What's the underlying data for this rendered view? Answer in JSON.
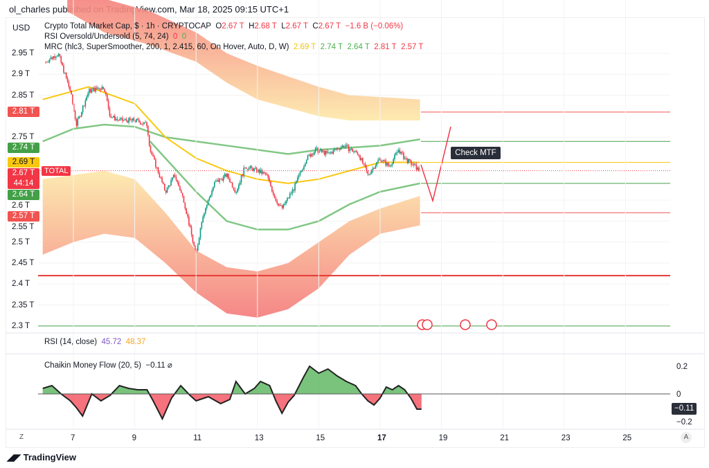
{
  "header": {
    "published": "ol_charles published on TradingView.com, Mar 18, 2025 09:15 UTC+1",
    "currency": "USD"
  },
  "legend": {
    "symbol": "Crypto Total Market Cap, $ · 1h · CRYPTOCAP",
    "ohlc": {
      "o_label": "O",
      "o": "2.67 T",
      "h_label": "H",
      "h": "2.68 T",
      "l_label": "L",
      "l": "2.67 T",
      "c_label": "C",
      "c": "2.67 T",
      "change": "−1.6 B (−0.06%)"
    },
    "rsi_os": {
      "name": "RSI Oversold/Undersold (5, 74, 24)",
      "v1": "0",
      "v2": "0"
    },
    "mrc": {
      "name": "MRC (hlc3, SuperSmoother, 200, 1, 2.415, 60, On Hover, Auto, D, W)",
      "values": [
        "2.69 T",
        "2.74 T",
        "2.64 T",
        "2.81 T",
        "2.57 T"
      ]
    },
    "rsi": {
      "name": "RSI (14, close)",
      "v1": "45.72",
      "v2": "48.37"
    },
    "cmf": {
      "name": "Chaikin Money Flow (20, 5)",
      "value": "−0.11",
      "icon": "eye-off-icon"
    }
  },
  "price_labels": [
    {
      "text": "2.81 T",
      "value": 2.81,
      "color": "#f05350"
    },
    {
      "text": "2.74 T",
      "value": 2.74,
      "color": "#43a047"
    },
    {
      "text": "2.69 T",
      "value": 2.69,
      "color": "#f9c80e"
    },
    {
      "text": "2.67 T",
      "sub": "44:14",
      "value": 2.67,
      "color": "#f23645"
    },
    {
      "text": "2.64 T",
      "value": 2.64,
      "color": "#43a047"
    },
    {
      "text": "2.57 T",
      "value": 2.57,
      "color": "#f05350"
    }
  ],
  "total_tag": "TOTAL",
  "annotation": "Check MTF",
  "cmf_axis": {
    "ticks": [
      "0.2",
      "0",
      "−0.2"
    ],
    "current": "−0.11"
  },
  "scale_buttons": {
    "left": "Z",
    "right": "A"
  },
  "footer": {
    "logo": "TradingView"
  },
  "colors": {
    "up": "#089981",
    "down": "#f23645",
    "mean": "#f9c80e",
    "inner": "#81c784",
    "cmf_pos": "#4caf50",
    "cmf_neg": "#f23645"
  },
  "chart_data": {
    "type": "candlestick",
    "price_axis": {
      "ticks": [
        "2.95 T",
        "2.9 T",
        "2.85 T",
        "2.75 T",
        "2.6 T",
        "2.55 T",
        "2.5 T",
        "2.45 T",
        "2.4 T",
        "2.35 T",
        "2.3 T"
      ],
      "range": [
        2.29,
        3.0
      ],
      "side": "left"
    },
    "time_axis": {
      "ticks": [
        "7",
        "9",
        "11",
        "13",
        "15",
        "17",
        "19",
        "21",
        "23",
        "25"
      ],
      "range": [
        6,
        27
      ]
    },
    "close": [
      [
        6.1,
        2.93
      ],
      [
        6.5,
        2.95
      ],
      [
        6.9,
        2.86
      ],
      [
        7.1,
        2.78
      ],
      [
        7.5,
        2.86
      ],
      [
        8,
        2.87
      ],
      [
        8.2,
        2.8
      ],
      [
        8.5,
        2.79
      ],
      [
        9,
        2.79
      ],
      [
        9.4,
        2.78
      ],
      [
        9.5,
        2.72
      ],
      [
        9.8,
        2.66
      ],
      [
        10,
        2.62
      ],
      [
        10.3,
        2.66
      ],
      [
        10.6,
        2.6
      ],
      [
        10.9,
        2.5
      ],
      [
        11,
        2.47
      ],
      [
        11.2,
        2.56
      ],
      [
        11.6,
        2.64
      ],
      [
        12,
        2.66
      ],
      [
        12.3,
        2.62
      ],
      [
        12.6,
        2.68
      ],
      [
        13,
        2.67
      ],
      [
        13.3,
        2.66
      ],
      [
        13.6,
        2.6
      ],
      [
        13.8,
        2.58
      ],
      [
        14.2,
        2.63
      ],
      [
        14.6,
        2.7
      ],
      [
        14.9,
        2.72
      ],
      [
        15.3,
        2.71
      ],
      [
        15.8,
        2.73
      ],
      [
        16.3,
        2.71
      ],
      [
        16.6,
        2.66
      ],
      [
        17,
        2.7
      ],
      [
        17.3,
        2.68
      ],
      [
        17.6,
        2.72
      ],
      [
        17.8,
        2.7
      ],
      [
        18.3,
        2.67
      ]
    ],
    "mrc_mean": [
      [
        6,
        2.84
      ],
      [
        7.5,
        2.87
      ],
      [
        9,
        2.83
      ],
      [
        10,
        2.75
      ],
      [
        11,
        2.7
      ],
      [
        12,
        2.67
      ],
      [
        13,
        2.65
      ],
      [
        14,
        2.64
      ],
      [
        15,
        2.65
      ],
      [
        16,
        2.67
      ],
      [
        17,
        2.69
      ],
      [
        18.3,
        2.69
      ]
    ],
    "mrc_upper_inner": [
      [
        6,
        2.74
      ],
      [
        7,
        2.77
      ],
      [
        8,
        2.78
      ],
      [
        9,
        2.775
      ],
      [
        10,
        2.75
      ],
      [
        11,
        2.74
      ],
      [
        12,
        2.73
      ],
      [
        13,
        2.72
      ],
      [
        14,
        2.71
      ],
      [
        15,
        2.72
      ],
      [
        17,
        2.73
      ],
      [
        18.3,
        2.745
      ]
    ],
    "mrc_lower_inner": [
      [
        9.5,
        2.74
      ],
      [
        10,
        2.7
      ],
      [
        11,
        2.62
      ],
      [
        12,
        2.55
      ],
      [
        13,
        2.53
      ],
      [
        14,
        2.53
      ],
      [
        15,
        2.55
      ],
      [
        16,
        2.59
      ],
      [
        17,
        2.62
      ],
      [
        18.3,
        2.64
      ]
    ],
    "mrc_upper_band": [
      [
        6.8,
        3.05,
        3.1
      ],
      [
        8,
        3.0,
        3.08
      ],
      [
        9.5,
        2.97,
        3.05
      ],
      [
        11,
        2.93,
        3.0
      ],
      [
        12,
        2.88,
        2.95
      ],
      [
        13,
        2.84,
        2.92
      ],
      [
        15,
        2.8,
        2.87
      ],
      [
        16,
        2.79,
        2.85
      ],
      [
        18.3,
        2.79,
        2.84
      ]
    ],
    "mrc_lower_band": [
      [
        6,
        2.65,
        2.47
      ],
      [
        7,
        2.66,
        2.5
      ],
      [
        8,
        2.67,
        2.52
      ],
      [
        9,
        2.65,
        2.51
      ],
      [
        10,
        2.57,
        2.45
      ],
      [
        11,
        2.48,
        2.38
      ],
      [
        12,
        2.44,
        2.33
      ],
      [
        13,
        2.43,
        2.32
      ],
      [
        14,
        2.45,
        2.34
      ],
      [
        15,
        2.5,
        2.39
      ],
      [
        16,
        2.55,
        2.47
      ],
      [
        17,
        2.58,
        2.52
      ],
      [
        18.3,
        2.61,
        2.54
      ]
    ],
    "horizontal_levels": [
      2.81,
      2.74,
      2.69,
      2.64,
      2.57,
      2.42,
      2.3
    ],
    "cmf": [
      [
        6,
        0.04
      ],
      [
        6.3,
        0.06
      ],
      [
        6.6,
        0.0
      ],
      [
        6.9,
        -0.05
      ],
      [
        7.1,
        -0.1
      ],
      [
        7.3,
        -0.16
      ],
      [
        7.6,
        0.0
      ],
      [
        7.9,
        -0.05
      ],
      [
        8.2,
        -0.01
      ],
      [
        8.5,
        0.06
      ],
      [
        8.8,
        0.04
      ],
      [
        9.1,
        0.03
      ],
      [
        9.4,
        0.03
      ],
      [
        9.6,
        -0.05
      ],
      [
        9.9,
        -0.18
      ],
      [
        10.2,
        -0.03
      ],
      [
        10.5,
        0.06
      ],
      [
        10.8,
        -0.01
      ],
      [
        11,
        -0.05
      ],
      [
        11.4,
        -0.02
      ],
      [
        11.8,
        -0.07
      ],
      [
        12.1,
        -0.04
      ],
      [
        12.3,
        0.09
      ],
      [
        12.6,
        0.0
      ],
      [
        12.9,
        0.04
      ],
      [
        13.1,
        0.09
      ],
      [
        13.4,
        0.06
      ],
      [
        13.6,
        -0.05
      ],
      [
        13.8,
        -0.14
      ],
      [
        14,
        -0.06
      ],
      [
        14.2,
        -0.01
      ],
      [
        14.5,
        0.12
      ],
      [
        14.7,
        0.2
      ],
      [
        15,
        0.15
      ],
      [
        15.3,
        0.18
      ],
      [
        15.6,
        0.13
      ],
      [
        15.9,
        0.09
      ],
      [
        16.2,
        0.06
      ],
      [
        16.4,
        0.0
      ],
      [
        16.6,
        -0.05
      ],
      [
        16.8,
        -0.08
      ],
      [
        17,
        -0.03
      ],
      [
        17.2,
        0.05
      ],
      [
        17.4,
        0.03
      ],
      [
        17.6,
        0.06
      ],
      [
        17.8,
        0.03
      ],
      [
        18,
        -0.03
      ],
      [
        18.2,
        -0.11
      ],
      [
        18.35,
        -0.11
      ]
    ]
  }
}
